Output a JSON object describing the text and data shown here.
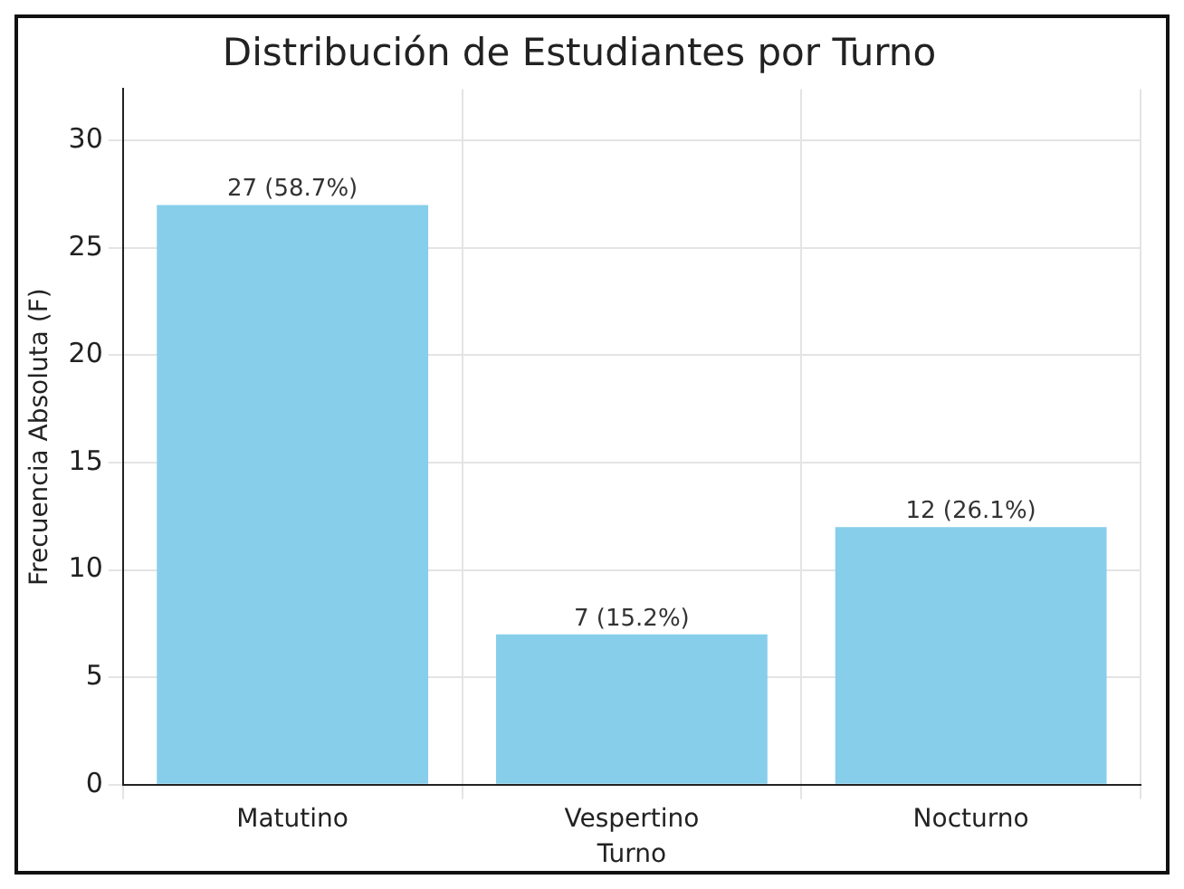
{
  "chart_data": {
    "type": "bar",
    "title": "Distribución de Estudiantes por Turno",
    "xlabel": "Turno",
    "ylabel": "Frecuencia Absoluta (F)",
    "categories": [
      "Matutino",
      "Vespertino",
      "Nocturno"
    ],
    "values": [
      27,
      7,
      12
    ],
    "color": "#87ceeb",
    "value_labels": [
      "27 (58.7%)",
      "7 (15.2%)",
      "12 (26.1%)"
    ],
    "ylim": [
      0,
      32.4
    ],
    "yticks": [
      0,
      5,
      10,
      15,
      20,
      25,
      30
    ],
    "grid": true,
    "legend": false
  }
}
